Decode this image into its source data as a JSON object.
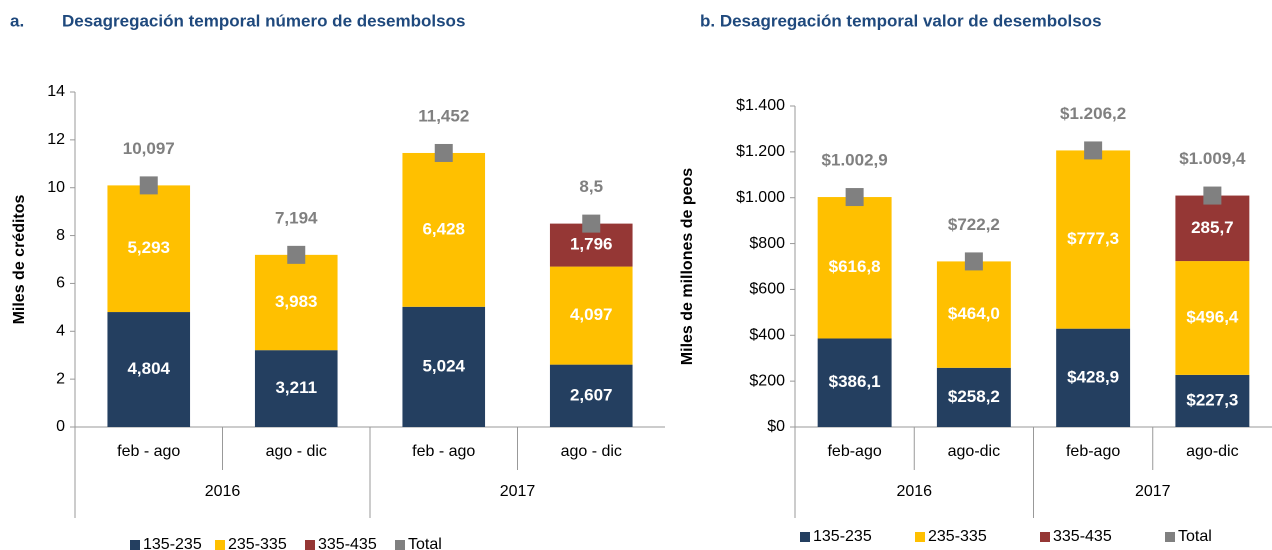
{
  "chart_data": [
    {
      "type": "bar",
      "label": "a.",
      "title": "Desagregación temporal número de desembolsos",
      "y_label": "Miles de créditos",
      "categories": [
        "feb - ago",
        "ago - dic",
        "feb - ago",
        "ago - dic"
      ],
      "groups": [
        "2016",
        "2017"
      ],
      "ylim": [
        0,
        14
      ],
      "yticks": [
        0,
        2,
        4,
        6,
        8,
        10,
        12,
        14
      ],
      "series": [
        {
          "name": "135-235",
          "color": "#243f60",
          "values": [
            4.804,
            3.211,
            5.024,
            2.607
          ],
          "value_labels": [
            "4,804",
            "3,211",
            "5,024",
            "2,607"
          ]
        },
        {
          "name": "235-335",
          "color": "#ffc000",
          "values": [
            5.293,
            3.983,
            6.428,
            4.097
          ],
          "value_labels": [
            "5,293",
            "3,983",
            "6,428",
            "4,097"
          ]
        },
        {
          "name": "335-435",
          "color": "#953735",
          "values": [
            null,
            null,
            null,
            1.796
          ],
          "value_labels": [
            null,
            null,
            null,
            "1,796"
          ]
        },
        {
          "name": "Total",
          "color": "#808080",
          "mark": "square",
          "values": [
            10.097,
            7.194,
            11.452,
            8.5
          ],
          "value_labels": [
            "10,097",
            "7,194",
            "11,452",
            "8,5"
          ]
        }
      ]
    },
    {
      "type": "bar",
      "title": "b. Desagregación temporal valor de desembolsos",
      "y_label": "Miles de millones de peos",
      "categories": [
        "feb-ago",
        "ago-dic",
        "feb-ago",
        "ago-dic"
      ],
      "groups": [
        "2016",
        "2017"
      ],
      "ylim": [
        0,
        1400
      ],
      "yticks": [
        {
          "value": 0,
          "label": "$0"
        },
        {
          "value": 200,
          "label": "$200"
        },
        {
          "value": 400,
          "label": "$400"
        },
        {
          "value": 600,
          "label": "$600"
        },
        {
          "value": 800,
          "label": "$800"
        },
        {
          "value": 1000,
          "label": "$1.000"
        },
        {
          "value": 1200,
          "label": "$1.200"
        },
        {
          "value": 1400,
          "label": "$1.400"
        }
      ],
      "series": [
        {
          "name": "135-235",
          "color": "#243f60",
          "values": [
            386.1,
            258.2,
            428.9,
            227.3
          ],
          "value_labels": [
            "$386,1",
            "$258,2",
            "$428,9",
            "$227,3"
          ]
        },
        {
          "name": "235-335",
          "color": "#ffc000",
          "values": [
            616.8,
            464.0,
            777.3,
            496.4
          ],
          "value_labels": [
            "$616,8",
            "$464,0",
            "$777,3",
            "$496,4"
          ]
        },
        {
          "name": "335-435",
          "color": "#953735",
          "values": [
            null,
            null,
            null,
            285.7
          ],
          "value_labels": [
            null,
            null,
            null,
            "285,7"
          ]
        },
        {
          "name": "Total",
          "color": "#808080",
          "mark": "square",
          "values": [
            1002.9,
            722.2,
            1206.2,
            1009.4
          ],
          "value_labels": [
            "$1.002,9",
            "$722,2",
            "$1.206,2",
            "$1.009,4"
          ]
        }
      ]
    }
  ]
}
